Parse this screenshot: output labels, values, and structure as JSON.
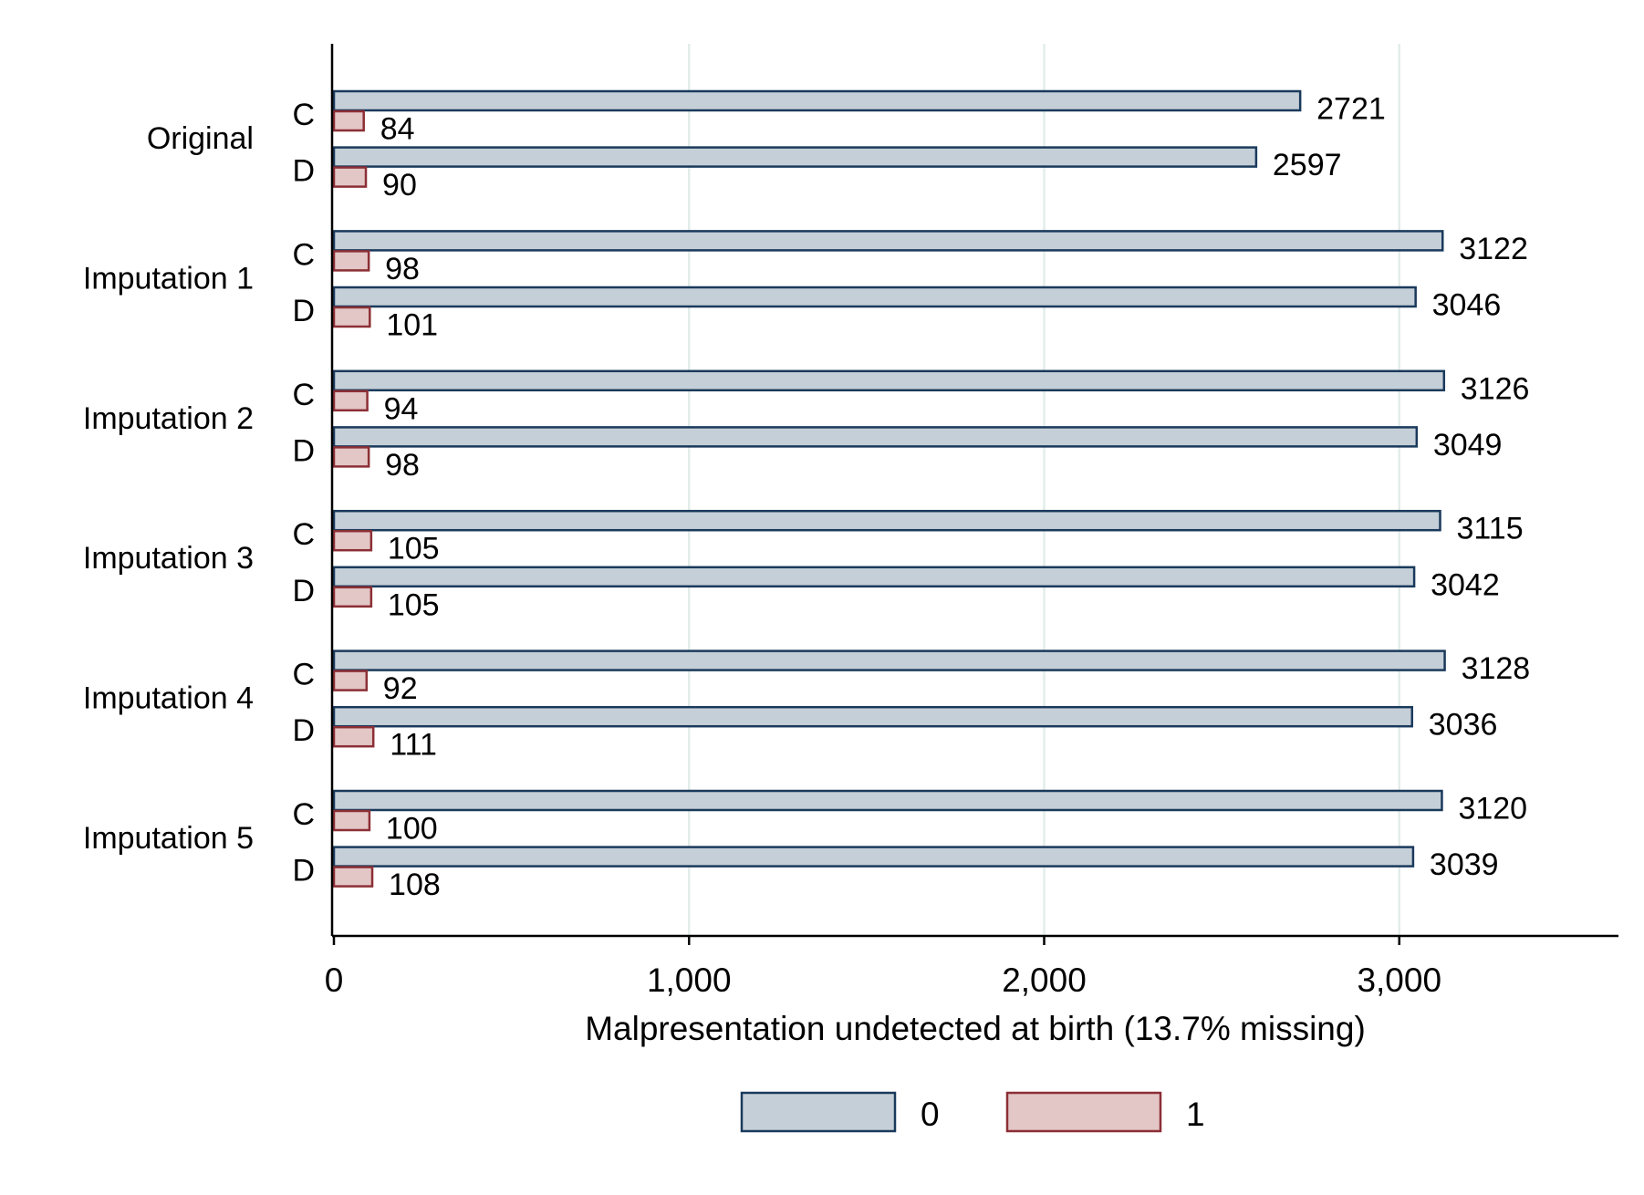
{
  "chart_data": {
    "type": "bar",
    "orientation": "horizontal",
    "xlabel": "Malpresentation undetected at birth (13.7% missing)",
    "xlim": [
      0,
      3600
    ],
    "xticks": [
      0,
      1000,
      2000,
      3000
    ],
    "xtick_labels": [
      "0",
      "1,000",
      "2,000",
      "3,000"
    ],
    "grid": true,
    "legend_position": "bottom",
    "colors": {
      "series0_fill": "#c5cfd8",
      "series0_stroke": "#1a3a5c",
      "series1_fill": "#e3c6c6",
      "series1_stroke": "#8c2f35"
    },
    "series_names": [
      "0",
      "1"
    ],
    "groups": [
      {
        "label": "Original",
        "subgroups": [
          {
            "label": "C",
            "values": [
              2721,
              84
            ]
          },
          {
            "label": "D",
            "values": [
              2597,
              90
            ]
          }
        ]
      },
      {
        "label": "Imputation 1",
        "subgroups": [
          {
            "label": "C",
            "values": [
              3122,
              98
            ]
          },
          {
            "label": "D",
            "values": [
              3046,
              101
            ]
          }
        ]
      },
      {
        "label": "Imputation 2",
        "subgroups": [
          {
            "label": "C",
            "values": [
              3126,
              94
            ]
          },
          {
            "label": "D",
            "values": [
              3049,
              98
            ]
          }
        ]
      },
      {
        "label": "Imputation 3",
        "subgroups": [
          {
            "label": "C",
            "values": [
              3115,
              105
            ]
          },
          {
            "label": "D",
            "values": [
              3042,
              105
            ]
          }
        ]
      },
      {
        "label": "Imputation 4",
        "subgroups": [
          {
            "label": "C",
            "values": [
              3128,
              92
            ]
          },
          {
            "label": "D",
            "values": [
              3036,
              111
            ]
          }
        ]
      },
      {
        "label": "Imputation 5",
        "subgroups": [
          {
            "label": "C",
            "values": [
              3120,
              100
            ]
          },
          {
            "label": "D",
            "values": [
              3039,
              108
            ]
          }
        ]
      }
    ]
  }
}
